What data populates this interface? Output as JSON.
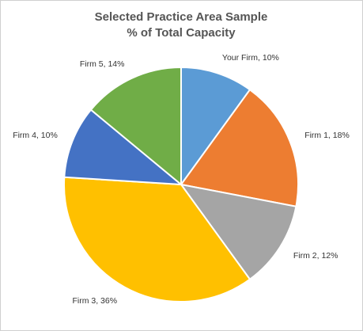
{
  "chart_data": {
    "type": "pie",
    "title": "Selected Practice Area Sample",
    "subtitle": "% of Total Capacity",
    "categories": [
      "Your Firm,",
      "Firm 1,",
      "Firm 2,",
      "Firm 3,",
      "Firm 4,",
      "Firm 5,"
    ],
    "values": [
      10,
      18,
      12,
      36,
      10,
      14
    ],
    "value_labels": [
      "10%",
      "18%",
      "12%",
      "36%",
      "10%",
      "14%"
    ],
    "colors": [
      "#5b9bd5",
      "#ed7d31",
      "#a5a5a5",
      "#ffc000",
      "#4472c4",
      "#70ad47"
    ]
  }
}
